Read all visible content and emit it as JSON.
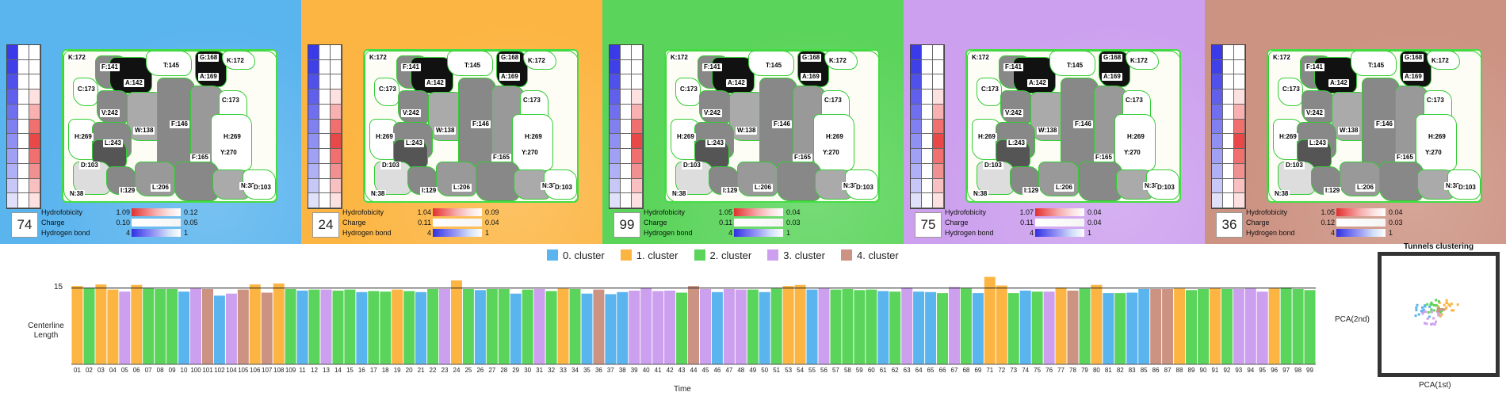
{
  "panels": [
    {
      "color": "#5ab4ee",
      "frame": "74",
      "hyd": [
        "1.09",
        "0.12"
      ],
      "chg": [
        "0.10",
        "0.05"
      ],
      "hb": [
        "4",
        "1"
      ]
    },
    {
      "color": "#fcb542",
      "frame": "24",
      "hyd": [
        "1.04",
        "0.09"
      ],
      "chg": [
        "0.11",
        "0.04"
      ],
      "hb": [
        "4",
        "1"
      ]
    },
    {
      "color": "#5ad45a",
      "frame": "99",
      "hyd": [
        "1.05",
        "0.04"
      ],
      "chg": [
        "0.11",
        "0.03"
      ],
      "hb": [
        "4",
        "1"
      ]
    },
    {
      "color": "#cca0ee",
      "frame": "75",
      "hyd": [
        "1.07",
        "0.04"
      ],
      "chg": [
        "0.11",
        "0.04"
      ],
      "hb": [
        "4",
        "1"
      ]
    },
    {
      "color": "#cc9282",
      "frame": "36",
      "hyd": [
        "1.05",
        "0.04"
      ],
      "chg": [
        "0.12",
        "0.03"
      ],
      "hb": [
        "4",
        "1"
      ]
    }
  ],
  "legend_labels": {
    "hyd": "Hydrofobicity",
    "chg": "Charge",
    "hb": "Hydrogen bond"
  },
  "region_labels": [
    "K:172",
    "F:141",
    "T:145",
    "G:168",
    "K:172",
    "A:142",
    "A:169",
    "C:173",
    "C:173",
    "V:242",
    "F:146",
    "W:138",
    "H:269",
    "H:269",
    "L:243",
    "Y:270",
    "D:103",
    "F:165",
    "N:38",
    "I:129",
    "L:206",
    "N:38",
    "D:103"
  ],
  "clusters": [
    {
      "label": "0. cluster",
      "color": "#5ab4ee"
    },
    {
      "label": "1. cluster",
      "color": "#fcb542"
    },
    {
      "label": "2. cluster",
      "color": "#5ad45a"
    },
    {
      "label": "3. cluster",
      "color": "#cca0ee"
    },
    {
      "label": "4. cluster",
      "color": "#cc9282"
    }
  ],
  "chart": {
    "ylabel": "Centerline Length",
    "xlabel": "Time",
    "ytick": "15",
    "scatter_title": "Tunnels clustering",
    "scatter_x": "PCA(1st)",
    "scatter_y": "PCA(2nd)"
  },
  "chart_data": {
    "type": "bar",
    "ylim": [
      0,
      19
    ],
    "reference_line": 15,
    "categories": [
      "01",
      "02",
      "03",
      "04",
      "05",
      "06",
      "07",
      "08",
      "09",
      "10",
      "100",
      "101",
      "102",
      "104",
      "105",
      "106",
      "107",
      "108",
      "109",
      "11",
      "12",
      "13",
      "14",
      "15",
      "16",
      "17",
      "18",
      "19",
      "20",
      "21",
      "22",
      "23",
      "24",
      "25",
      "26",
      "27",
      "28",
      "29",
      "30",
      "31",
      "32",
      "33",
      "34",
      "35",
      "36",
      "37",
      "38",
      "39",
      "40",
      "41",
      "42",
      "43",
      "44",
      "45",
      "46",
      "47",
      "48",
      "49",
      "50",
      "51",
      "53",
      "54",
      "55",
      "56",
      "57",
      "58",
      "59",
      "60",
      "61",
      "62",
      "63",
      "64",
      "65",
      "66",
      "67",
      "68",
      "69",
      "71",
      "72",
      "73",
      "74",
      "75",
      "76",
      "77",
      "78",
      "79",
      "80",
      "81",
      "82",
      "83",
      "85",
      "86",
      "87",
      "88",
      "89",
      "90",
      "91",
      "92",
      "93",
      "94",
      "95",
      "96",
      "97",
      "98",
      "99"
    ],
    "values": [
      15.4,
      15.0,
      15.7,
      14.7,
      14.3,
      15.6,
      14.9,
      14.8,
      14.8,
      14.3,
      14.9,
      14.8,
      13.5,
      13.9,
      14.7,
      15.7,
      14.1,
      15.9,
      14.8,
      14.5,
      14.7,
      14.7,
      14.5,
      14.7,
      14.2,
      14.4,
      14.3,
      14.7,
      14.4,
      14.2,
      14.8,
      14.8,
      16.5,
      14.8,
      14.6,
      14.8,
      14.8,
      13.9,
      14.7,
      14.8,
      14.4,
      14.9,
      14.8,
      13.9,
      14.7,
      13.8,
      14.2,
      14.5,
      15.0,
      14.4,
      14.5,
      14.1,
      15.4,
      14.8,
      14.2,
      14.8,
      14.7,
      14.7,
      14.2,
      14.9,
      15.4,
      15.6,
      14.7,
      14.9,
      14.7,
      14.8,
      14.6,
      14.7,
      14.4,
      14.3,
      15.1,
      14.3,
      14.2,
      14.0,
      15.2,
      14.9,
      14.0,
      17.2,
      15.5,
      14.0,
      14.5,
      14.3,
      14.3,
      15.1,
      14.5,
      14.9,
      15.6,
      14.0,
      14.0,
      14.1,
      14.8,
      14.8,
      14.8,
      14.9,
      14.6,
      14.8,
      15.0,
      14.8,
      14.8,
      14.9,
      14.3,
      15.0,
      15.1,
      14.8,
      14.6
    ],
    "cluster": [
      1,
      2,
      1,
      1,
      3,
      1,
      2,
      2,
      2,
      0,
      3,
      4,
      0,
      3,
      4,
      1,
      4,
      1,
      2,
      0,
      2,
      3,
      2,
      2,
      0,
      2,
      2,
      1,
      2,
      0,
      2,
      3,
      1,
      2,
      0,
      2,
      2,
      0,
      2,
      3,
      2,
      1,
      2,
      0,
      4,
      0,
      0,
      3,
      3,
      3,
      3,
      2,
      4,
      3,
      0,
      3,
      3,
      2,
      0,
      2,
      1,
      1,
      0,
      3,
      2,
      2,
      2,
      2,
      0,
      2,
      3,
      0,
      0,
      2,
      3,
      2,
      0,
      1,
      1,
      2,
      0,
      2,
      3,
      1,
      4,
      2,
      1,
      0,
      2,
      0,
      0,
      4,
      4,
      1,
      2,
      2,
      1,
      2,
      3,
      3,
      3,
      1,
      2,
      2,
      2
    ]
  }
}
